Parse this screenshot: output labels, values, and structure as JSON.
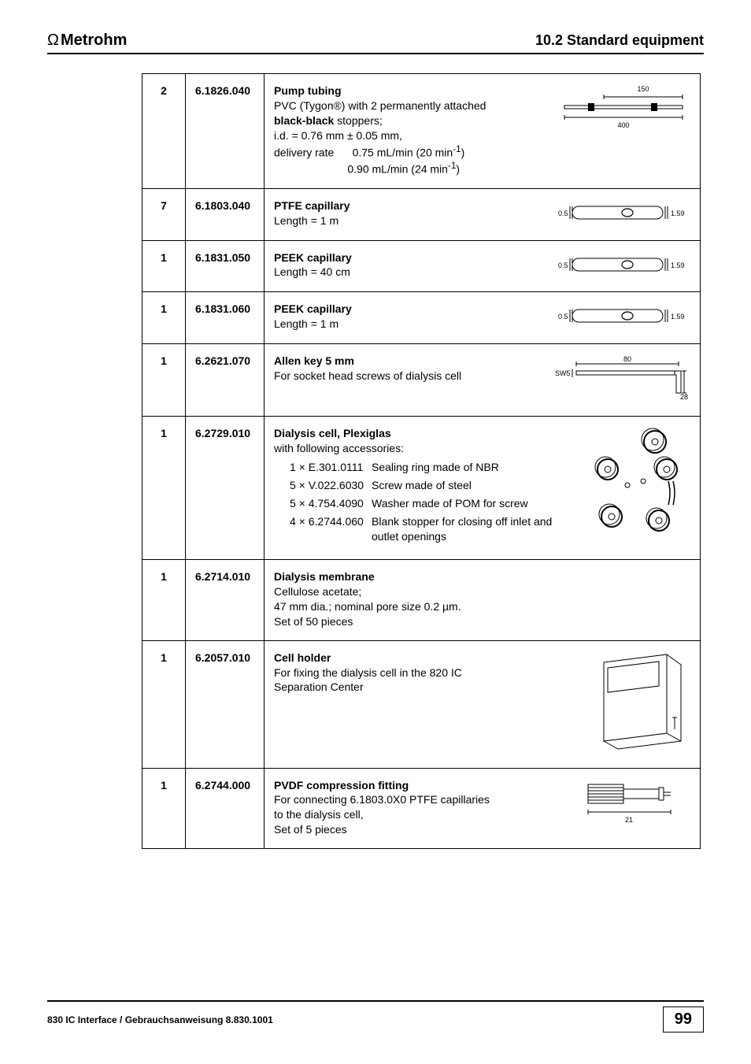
{
  "header": {
    "logo_prefix": "Ω",
    "logo": "Metrohm",
    "section": "10.2  Standard equipment"
  },
  "footer": {
    "left": "830 IC Interface / Gebrauchsanweisung 8.830.1001",
    "page": "99"
  },
  "rows": [
    {
      "qty": "2",
      "part": "6.1826.040",
      "title": "Pump tubing",
      "lines": [
        "PVC (Tygon®) with 2 permanently attached",
        "<b>black-black</b> stoppers;",
        "i.d. = 0.76 mm ± 0.05 mm,",
        "delivery rate&nbsp;&nbsp;&nbsp;&nbsp;&nbsp;&nbsp;0.75 mL/min (20 min<sup>-1</sup>)",
        "&nbsp;&nbsp;&nbsp;&nbsp;&nbsp;&nbsp;&nbsp;&nbsp;&nbsp;&nbsp;&nbsp;&nbsp;&nbsp;&nbsp;&nbsp;&nbsp;&nbsp;&nbsp;&nbsp;&nbsp;&nbsp;&nbsp;&nbsp;&nbsp;0.90 mL/min (24 min<sup>-1</sup>)"
      ],
      "svg": "tubing",
      "labels": {
        "top": "150",
        "bottom": "400"
      }
    },
    {
      "qty": "7",
      "part": "6.1803.040",
      "title": "PTFE capillary",
      "lines": [
        "Length = 1 m"
      ],
      "svg": "capillary",
      "labels": {
        "left": "0.5",
        "right": "1.59"
      }
    },
    {
      "qty": "1",
      "part": "6.1831.050",
      "title": "PEEK capillary",
      "lines": [
        "Length = 40 cm"
      ],
      "svg": "capillary",
      "labels": {
        "left": "0.5",
        "right": "1.59"
      }
    },
    {
      "qty": "1",
      "part": "6.1831.060",
      "title": "PEEK capillary",
      "lines": [
        "Length = 1 m"
      ],
      "svg": "capillary",
      "labels": {
        "left": "0.5",
        "right": "1.59"
      }
    },
    {
      "qty": "1",
      "part": "6.2621.070",
      "title": "Allen key 5 mm",
      "lines": [
        "For socket head screws of dialysis cell"
      ],
      "svg": "allenkey",
      "labels": {
        "top": "80",
        "left": "SW5",
        "right": "28"
      }
    },
    {
      "qty": "1",
      "part": "6.2729.010",
      "title": "Dialysis cell, Plexiglas",
      "lines": [
        "with following accessories:"
      ],
      "accessories": [
        {
          "qty_part": "1 × E.301.0111",
          "desc": "Sealing ring made of NBR"
        },
        {
          "qty_part": "5 × V.022.6030",
          "desc": "Screw made of steel"
        },
        {
          "qty_part": "5 × 4.754.4090",
          "desc": "Washer made of POM for screw"
        },
        {
          "qty_part": "4 × 6.2744.060",
          "desc": "Blank stopper for closing off inlet and outlet openings"
        }
      ],
      "svg": "dialysis"
    },
    {
      "qty": "1",
      "part": "6.2714.010",
      "title": "Dialysis membrane",
      "lines": [
        "Cellulose acetate;",
        "47 mm dia.; nominal pore size 0.2 µm.",
        "Set of 50 pieces"
      ]
    },
    {
      "qty": "1",
      "part": "6.2057.010",
      "title": "Cell holder",
      "lines": [
        "For fixing the dialysis cell in the 820 IC",
        "Separation Center"
      ],
      "svg": "cellholder"
    },
    {
      "qty": "1",
      "part": "6.2744.000",
      "title": "PVDF compression fitting",
      "lines": [
        "For connecting 6.1803.0X0 PTFE capillaries",
        "to the dialysis cell,",
        "Set of 5 pieces"
      ],
      "svg": "fitting",
      "labels": {
        "bottom": "21"
      }
    }
  ]
}
